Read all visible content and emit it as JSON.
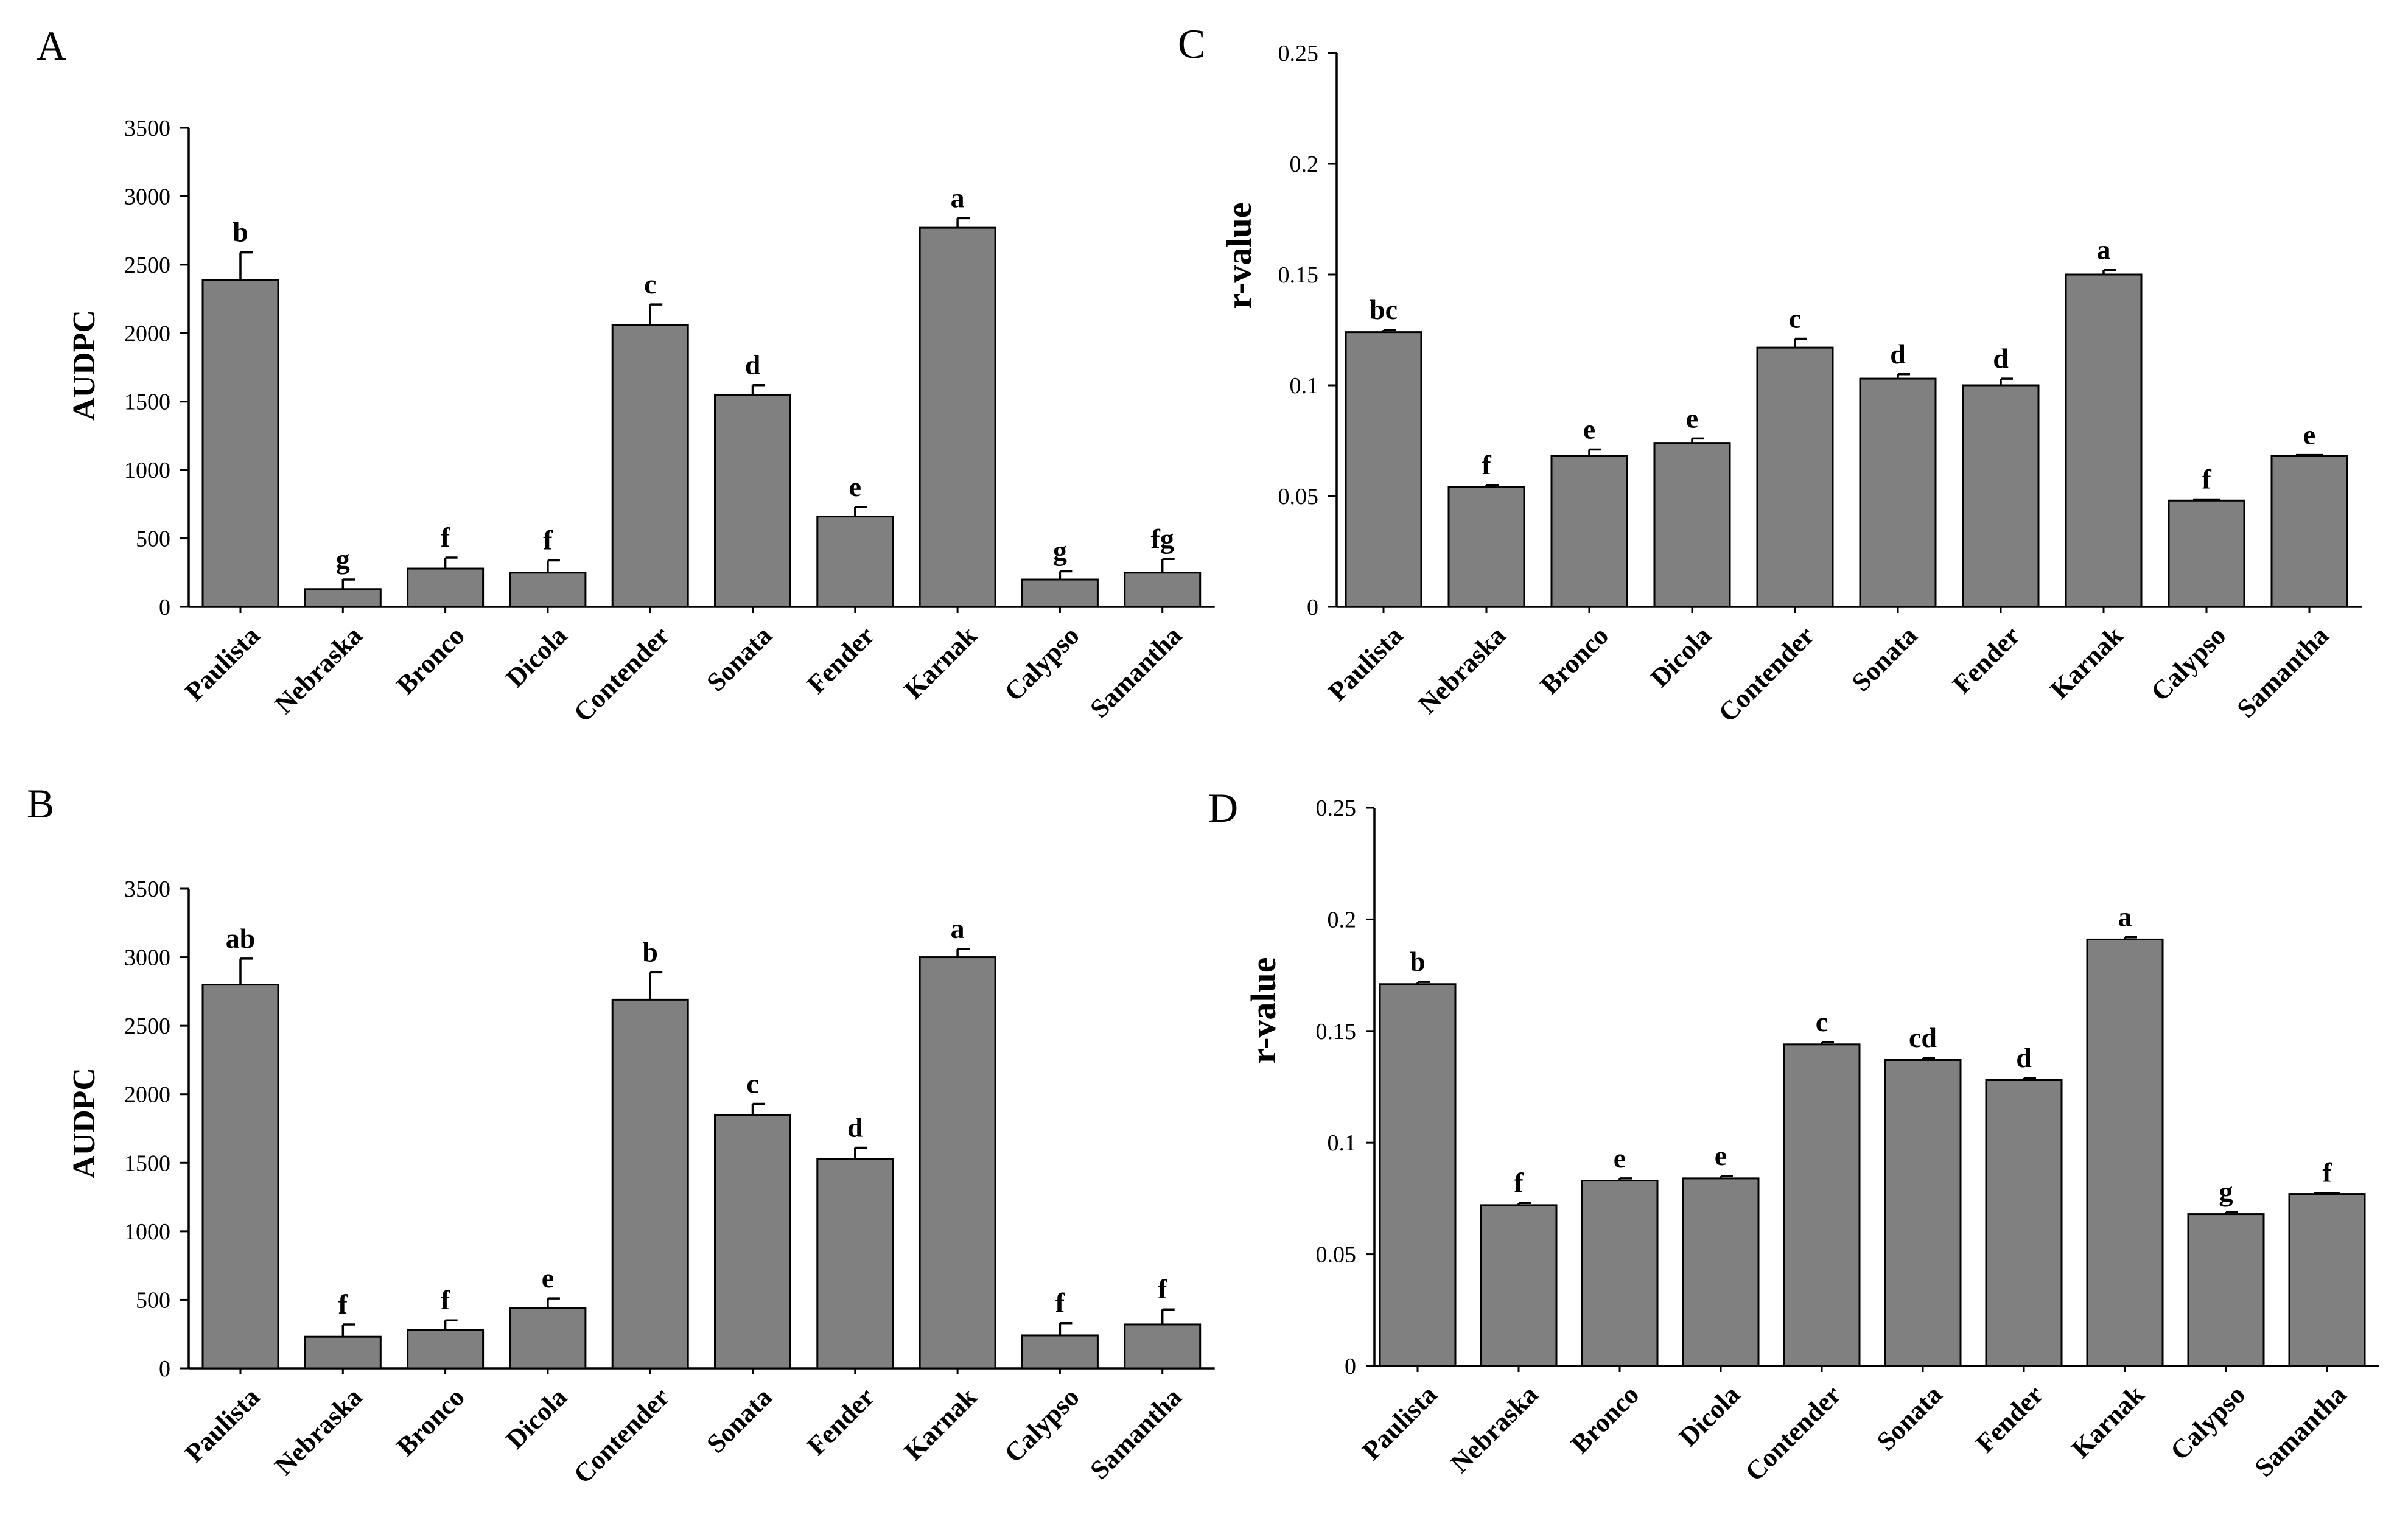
{
  "bar_color": "#808080",
  "chart_data": [
    {
      "panel": "A",
      "type": "bar",
      "ylabel": "AUDPC",
      "ylim": [
        0,
        3500
      ],
      "yticks": [
        "0",
        "500",
        "1000",
        "1500",
        "2000",
        "2500",
        "3000",
        "3500"
      ],
      "categories": [
        "Paulista",
        "Nebraska",
        "Bronco",
        "Dicola",
        "Contender",
        "Sonata",
        "Fender",
        "Karnak",
        "Calypso",
        "Samantha"
      ],
      "values": [
        2390,
        130,
        280,
        250,
        2060,
        1550,
        660,
        2770,
        200,
        250
      ],
      "errors": [
        200,
        70,
        80,
        90,
        150,
        70,
        70,
        70,
        60,
        100
      ],
      "labels": [
        "b",
        "g",
        "f",
        "f",
        "c",
        "d",
        "e",
        "a",
        "g",
        "fg"
      ]
    },
    {
      "panel": "B",
      "type": "bar",
      "ylabel": "AUDPC",
      "ylim": [
        0,
        3500
      ],
      "yticks": [
        "0",
        "500",
        "1000",
        "1500",
        "2000",
        "2500",
        "3000",
        "3500"
      ],
      "categories": [
        "Paulista",
        "Nebraska",
        "Bronco",
        "Dicola",
        "Contender",
        "Sonata",
        "Fender",
        "Karnak",
        "Calypso",
        "Samantha"
      ],
      "values": [
        2800,
        230,
        280,
        440,
        2690,
        1850,
        1530,
        3000,
        240,
        320
      ],
      "errors": [
        190,
        90,
        70,
        70,
        200,
        80,
        80,
        60,
        90,
        110
      ],
      "labels": [
        "ab",
        "f",
        "f",
        "e",
        "b",
        "c",
        "d",
        "a",
        "f",
        "f"
      ]
    },
    {
      "panel": "C",
      "type": "bar",
      "ylabel": "r-value",
      "ylim": [
        0,
        0.25
      ],
      "yticks": [
        "0",
        "0.05",
        "0.1",
        "0.15",
        "0.2",
        "0.25"
      ],
      "categories": [
        "Paulista",
        "Nebraska",
        "Bronco",
        "Dicola",
        "Contender",
        "Sonata",
        "Fender",
        "Karnak",
        "Calypso",
        "Samantha"
      ],
      "values": [
        0.124,
        0.054,
        0.068,
        0.074,
        0.117,
        0.103,
        0.1,
        0.15,
        0.048,
        0.068
      ],
      "errors": [
        0.001,
        0.001,
        0.003,
        0.002,
        0.004,
        0.002,
        0.003,
        0.002,
        0.0005,
        0.0005
      ],
      "labels": [
        "bc",
        "f",
        "e",
        "e",
        "c",
        "d",
        "d",
        "a",
        "f",
        "e"
      ]
    },
    {
      "panel": "D",
      "type": "bar",
      "ylabel": "r-value",
      "ylim": [
        0,
        0.25
      ],
      "yticks": [
        "0",
        "0.05",
        "0.1",
        "0.15",
        "0.2",
        "0.25"
      ],
      "categories": [
        "Paulista",
        "Nebraska",
        "Bronco",
        "Dicola",
        "Contender",
        "Sonata",
        "Fender",
        "Karnak",
        "Calypso",
        "Samantha"
      ],
      "values": [
        0.171,
        0.072,
        0.083,
        0.084,
        0.144,
        0.137,
        0.128,
        0.191,
        0.068,
        0.077
      ],
      "errors": [
        0.001,
        0.001,
        0.001,
        0.001,
        0.001,
        0.001,
        0.001,
        0.001,
        0.001,
        0.0005
      ],
      "labels": [
        "b",
        "f",
        "e",
        "e",
        "c",
        "cd",
        "d",
        "a",
        "g",
        "f"
      ]
    }
  ]
}
